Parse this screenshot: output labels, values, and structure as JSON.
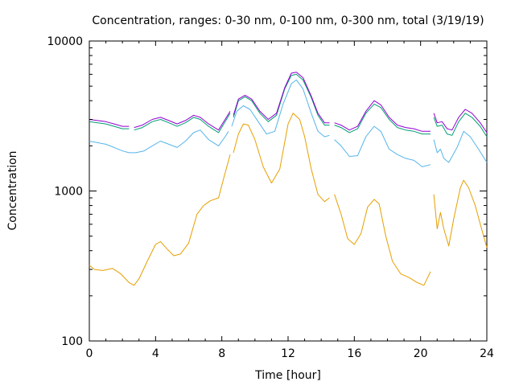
{
  "chart_data": {
    "type": "line",
    "title": "Concentration, ranges: 0-30 nm, 0-100 nm, 0-300 nm, total (3/19/19)",
    "xlabel": "Time [hour]",
    "ylabel": "Concentration",
    "xlim": [
      0,
      24
    ],
    "ylim": [
      100,
      10000
    ],
    "yscale": "log",
    "grid": false,
    "x_ticks": [
      0,
      4,
      8,
      12,
      16,
      20,
      24
    ],
    "y_ticks": [
      100,
      1000,
      10000
    ],
    "colors": [
      "#e69f00",
      "#56b4e9",
      "#009e73",
      "#9400d3"
    ],
    "series": [
      {
        "segments": [
          [
            [
              0,
              320
            ],
            [
              0.3,
              300
            ],
            [
              0.8,
              295
            ],
            [
              1.4,
              305
            ],
            [
              1.9,
              280
            ],
            [
              2.4,
              245
            ],
            [
              2.7,
              235
            ],
            [
              3.0,
              260
            ],
            [
              3.5,
              340
            ],
            [
              4.0,
              440
            ],
            [
              4.3,
              460
            ],
            [
              4.7,
              410
            ],
            [
              5.1,
              370
            ],
            [
              5.5,
              380
            ],
            [
              6.0,
              450
            ],
            [
              6.5,
              700
            ],
            [
              6.9,
              800
            ],
            [
              7.3,
              860
            ],
            [
              7.8,
              900
            ],
            [
              8.1,
              1200
            ],
            [
              8.5,
              1750
            ]
          ],
          [
            [
              8.7,
              1800
            ],
            [
              9.0,
              2400
            ],
            [
              9.3,
              2800
            ],
            [
              9.6,
              2750
            ],
            [
              10.0,
              2200
            ],
            [
              10.5,
              1450
            ],
            [
              11.0,
              1130
            ],
            [
              11.5,
              1400
            ],
            [
              12.0,
              2800
            ],
            [
              12.3,
              3300
            ],
            [
              12.7,
              3000
            ],
            [
              13.0,
              2300
            ],
            [
              13.4,
              1400
            ],
            [
              13.8,
              950
            ],
            [
              14.2,
              850
            ],
            [
              14.5,
              900
            ]
          ],
          [
            [
              14.8,
              950
            ],
            [
              15.2,
              700
            ],
            [
              15.6,
              480
            ],
            [
              16.0,
              440
            ],
            [
              16.4,
              520
            ],
            [
              16.8,
              780
            ],
            [
              17.2,
              880
            ],
            [
              17.5,
              820
            ],
            [
              17.9,
              500
            ],
            [
              18.3,
              340
            ],
            [
              18.8,
              280
            ],
            [
              19.3,
              265
            ],
            [
              19.8,
              245
            ],
            [
              20.2,
              235
            ],
            [
              20.6,
              290
            ]
          ],
          [
            [
              20.8,
              950
            ],
            [
              21.0,
              560
            ],
            [
              21.2,
              720
            ],
            [
              21.4,
              560
            ],
            [
              21.7,
              430
            ],
            [
              22.0,
              650
            ],
            [
              22.4,
              1050
            ],
            [
              22.6,
              1180
            ],
            [
              22.9,
              1050
            ],
            [
              23.3,
              800
            ],
            [
              23.7,
              550
            ],
            [
              24.0,
              420
            ]
          ]
        ]
      },
      {
        "segments": [
          [
            [
              0,
              2150
            ],
            [
              0.5,
              2100
            ],
            [
              1.0,
              2050
            ],
            [
              1.5,
              1950
            ],
            [
              2.0,
              1850
            ],
            [
              2.4,
              1800
            ],
            [
              2.8,
              1800
            ],
            [
              3.3,
              1850
            ],
            [
              3.8,
              2000
            ],
            [
              4.3,
              2150
            ],
            [
              4.8,
              2050
            ],
            [
              5.3,
              1950
            ],
            [
              5.8,
              2150
            ],
            [
              6.3,
              2450
            ],
            [
              6.7,
              2550
            ],
            [
              7.2,
              2200
            ],
            [
              7.8,
              2000
            ],
            [
              8.2,
              2300
            ],
            [
              8.4,
              2500
            ]
          ],
          [
            [
              8.6,
              2700
            ],
            [
              8.9,
              3400
            ],
            [
              9.3,
              3700
            ],
            [
              9.7,
              3500
            ],
            [
              10.2,
              2900
            ],
            [
              10.7,
              2400
            ],
            [
              11.2,
              2500
            ],
            [
              11.7,
              3800
            ],
            [
              12.2,
              5200
            ],
            [
              12.5,
              5500
            ],
            [
              12.9,
              4800
            ],
            [
              13.4,
              3300
            ],
            [
              13.8,
              2500
            ],
            [
              14.2,
              2300
            ],
            [
              14.5,
              2350
            ]
          ],
          [
            [
              14.8,
              2200
            ],
            [
              15.2,
              2000
            ],
            [
              15.7,
              1700
            ],
            [
              16.2,
              1720
            ],
            [
              16.7,
              2300
            ],
            [
              17.2,
              2700
            ],
            [
              17.6,
              2500
            ],
            [
              18.1,
              1900
            ],
            [
              18.6,
              1750
            ],
            [
              19.1,
              1650
            ],
            [
              19.6,
              1600
            ],
            [
              20.1,
              1450
            ],
            [
              20.6,
              1500
            ]
          ],
          [
            [
              20.8,
              2200
            ],
            [
              21.0,
              1800
            ],
            [
              21.2,
              1900
            ],
            [
              21.4,
              1650
            ],
            [
              21.7,
              1550
            ],
            [
              22.2,
              1950
            ],
            [
              22.6,
              2500
            ],
            [
              23.0,
              2300
            ],
            [
              23.5,
              1900
            ],
            [
              24.0,
              1550
            ]
          ]
        ]
      },
      {
        "segments": [
          [
            [
              0,
              2900
            ],
            [
              0.5,
              2850
            ],
            [
              1.0,
              2800
            ],
            [
              1.5,
              2700
            ],
            [
              2.0,
              2600
            ],
            [
              2.4,
              2600
            ]
          ],
          [
            [
              2.7,
              2550
            ],
            [
              3.2,
              2650
            ],
            [
              3.8,
              2900
            ],
            [
              4.3,
              3000
            ],
            [
              4.8,
              2850
            ],
            [
              5.3,
              2700
            ],
            [
              5.8,
              2850
            ],
            [
              6.3,
              3100
            ],
            [
              6.7,
              3000
            ],
            [
              7.2,
              2700
            ],
            [
              7.8,
              2450
            ],
            [
              8.2,
              2900
            ],
            [
              8.5,
              3300
            ]
          ],
          [
            [
              8.7,
              3100
            ],
            [
              9.0,
              4000
            ],
            [
              9.4,
              4250
            ],
            [
              9.8,
              4000
            ],
            [
              10.3,
              3300
            ],
            [
              10.8,
              2900
            ],
            [
              11.3,
              3200
            ],
            [
              11.8,
              4800
            ],
            [
              12.2,
              5900
            ],
            [
              12.5,
              6000
            ],
            [
              12.9,
              5500
            ],
            [
              13.4,
              4200
            ],
            [
              13.8,
              3200
            ],
            [
              14.2,
              2750
            ],
            [
              14.5,
              2750
            ]
          ],
          [
            [
              14.8,
              2750
            ],
            [
              15.2,
              2650
            ],
            [
              15.7,
              2450
            ],
            [
              16.2,
              2600
            ],
            [
              16.7,
              3300
            ],
            [
              17.2,
              3800
            ],
            [
              17.6,
              3600
            ],
            [
              18.1,
              3000
            ],
            [
              18.6,
              2650
            ],
            [
              19.1,
              2550
            ],
            [
              19.6,
              2500
            ],
            [
              20.1,
              2400
            ],
            [
              20.6,
              2400
            ]
          ],
          [
            [
              20.8,
              3100
            ],
            [
              21.0,
              2700
            ],
            [
              21.3,
              2750
            ],
            [
              21.6,
              2400
            ],
            [
              21.9,
              2350
            ],
            [
              22.3,
              2900
            ],
            [
              22.7,
              3300
            ],
            [
              23.1,
              3100
            ],
            [
              23.6,
              2700
            ],
            [
              24.0,
              2300
            ]
          ]
        ]
      },
      {
        "segments": [
          [
            [
              0,
              3000
            ],
            [
              0.5,
              2950
            ],
            [
              1.0,
              2900
            ],
            [
              1.5,
              2800
            ],
            [
              2.0,
              2700
            ],
            [
              2.4,
              2700
            ]
          ],
          [
            [
              2.7,
              2650
            ],
            [
              3.2,
              2750
            ],
            [
              3.8,
              3000
            ],
            [
              4.3,
              3100
            ],
            [
              4.8,
              2950
            ],
            [
              5.3,
              2800
            ],
            [
              5.8,
              2950
            ],
            [
              6.3,
              3200
            ],
            [
              6.7,
              3100
            ],
            [
              7.2,
              2800
            ],
            [
              7.8,
              2550
            ],
            [
              8.2,
              3000
            ],
            [
              8.5,
              3400
            ]
          ],
          [
            [
              8.7,
              3200
            ],
            [
              9.0,
              4100
            ],
            [
              9.4,
              4350
            ],
            [
              9.8,
              4100
            ],
            [
              10.3,
              3400
            ],
            [
              10.8,
              3000
            ],
            [
              11.3,
              3300
            ],
            [
              11.8,
              4900
            ],
            [
              12.2,
              6100
            ],
            [
              12.5,
              6200
            ],
            [
              12.9,
              5700
            ],
            [
              13.4,
              4300
            ],
            [
              13.8,
              3300
            ],
            [
              14.2,
              2850
            ],
            [
              14.5,
              2850
            ]
          ],
          [
            [
              14.8,
              2850
            ],
            [
              15.2,
              2750
            ],
            [
              15.7,
              2550
            ],
            [
              16.2,
              2700
            ],
            [
              16.7,
              3400
            ],
            [
              17.2,
              4000
            ],
            [
              17.6,
              3750
            ],
            [
              18.1,
              3100
            ],
            [
              18.6,
              2750
            ],
            [
              19.1,
              2650
            ],
            [
              19.6,
              2600
            ],
            [
              20.1,
              2500
            ],
            [
              20.6,
              2500
            ]
          ],
          [
            [
              20.8,
              3300
            ],
            [
              21.0,
              2850
            ],
            [
              21.3,
              2900
            ],
            [
              21.6,
              2600
            ],
            [
              21.9,
              2550
            ],
            [
              22.3,
              3100
            ],
            [
              22.7,
              3500
            ],
            [
              23.1,
              3300
            ],
            [
              23.6,
              2850
            ],
            [
              24.0,
              2450
            ]
          ]
        ]
      }
    ]
  }
}
